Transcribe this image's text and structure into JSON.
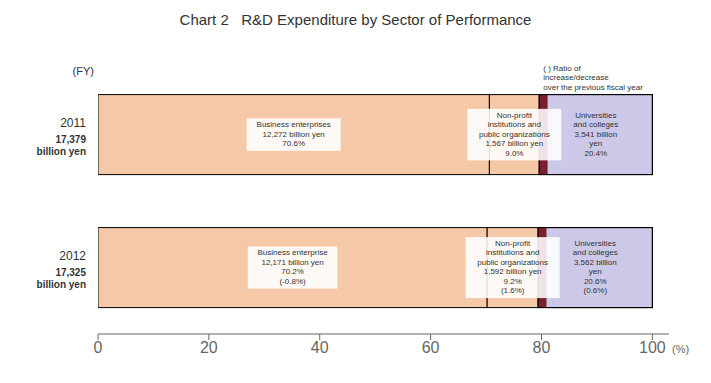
{
  "chart_data": {
    "type": "bar",
    "orientation": "horizontal",
    "stacked": true,
    "title": "Chart 2   R&D Expenditure by Sector of Performance",
    "xlabel": "(%)",
    "ylabel": "(FY)",
    "note": "(  )  Ratio of\nincrease/decrease\nover the previous fiscal year",
    "categories": [
      "2011",
      "2012"
    ],
    "total_labels": [
      "17,379\nbillion yen",
      "17,325\nbillion yen"
    ],
    "series": [
      {
        "color": "#f5c9a8",
        "values": [
          70.6,
          70.2
        ],
        "value_labels": [
          "Business enterprises\n12,272 billion yen\n70.6%",
          "Business enterprise\n12,171 billion yen\n70.2%\n(-0.8%)"
        ]
      },
      {
        "color": "#f5c9a8",
        "values": [
          9.0,
          9.2
        ],
        "value_labels": [
          "Non-profit\ninstitutions and\npublic organizations\n1,567 billion yen\n9.0%",
          "Non-profit\ninstitutions and\npublic organizations\n1,592 billion yen\n9.2%\n(1.6%)"
        ]
      },
      {
        "color": "#ccc8e8",
        "values": [
          20.4,
          20.6
        ],
        "value_labels": [
          "Universities\nand colleges\n3,541 billion\nyen\n20.4%",
          "Universities\nand colleges\n3,562 billion\nyen\n20.6%\n(0.6%)"
        ]
      }
    ],
    "dark_segments": {
      "color": "#7a1f2e",
      "starts": [
        79.6,
        79.4
      ],
      "widths": [
        1.5,
        1.5
      ]
    },
    "xlim": [
      0,
      103
    ],
    "xticks": [
      0,
      20,
      40,
      60,
      80,
      100
    ]
  }
}
